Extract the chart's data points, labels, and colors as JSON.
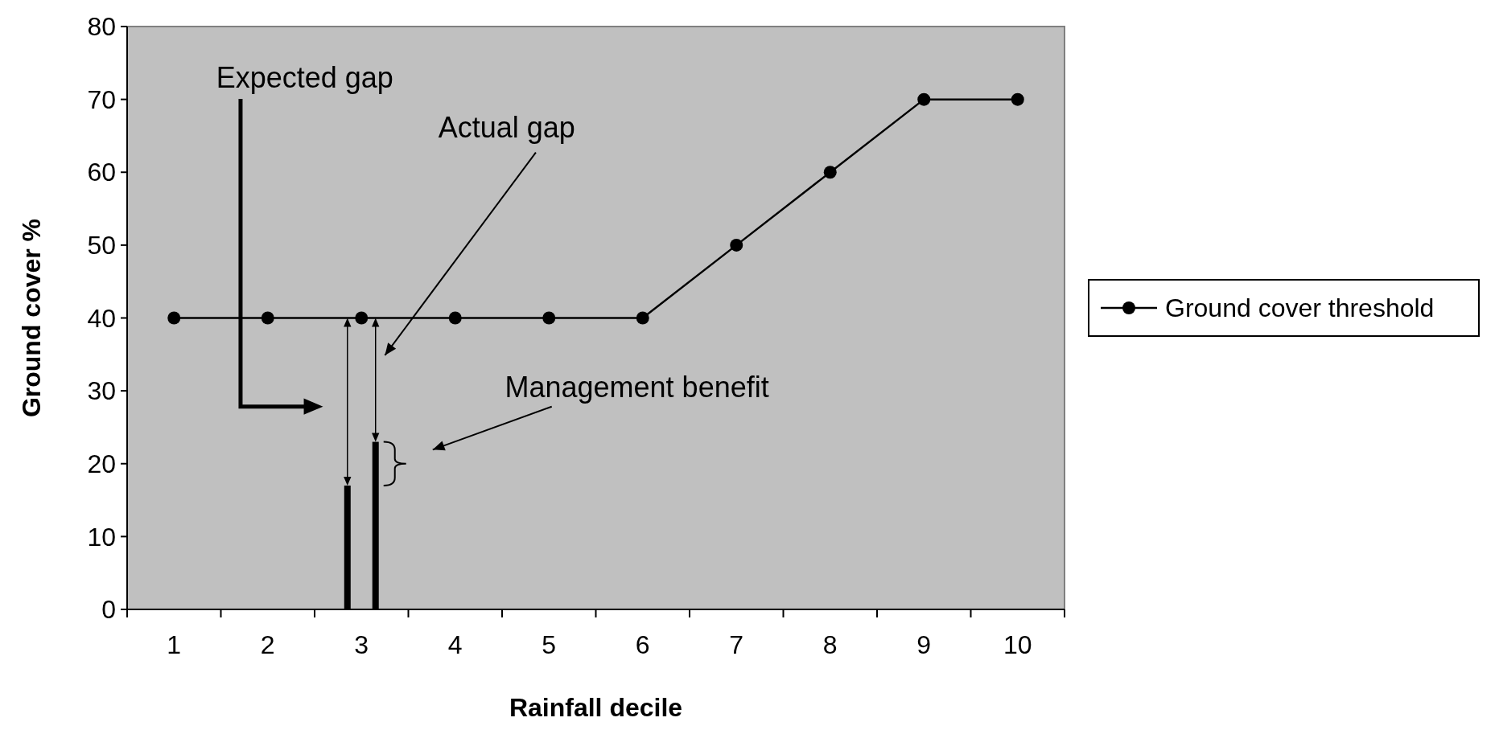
{
  "chart_data": {
    "type": "line",
    "xlabel": "Rainfall decile",
    "ylabel": "Ground cover %",
    "categories": [
      "1",
      "2",
      "3",
      "4",
      "5",
      "6",
      "7",
      "8",
      "9",
      "10"
    ],
    "series": [
      {
        "name": "Ground cover threshold",
        "color": "#000000",
        "values": [
          40,
          40,
          40,
          40,
          40,
          40,
          50,
          60,
          70,
          70
        ]
      },
      {
        "type": "bar",
        "color": "#000000",
        "values": [
          null,
          null,
          17,
          null,
          null,
          null,
          null,
          null,
          null,
          null
        ]
      },
      {
        "type": "bar",
        "color": "#000000",
        "values": [
          null,
          null,
          23,
          null,
          null,
          null,
          null,
          null,
          null,
          null
        ]
      }
    ],
    "ylim": [
      0,
      80
    ],
    "yticks": [
      0,
      10,
      20,
      30,
      40,
      50,
      60,
      70,
      80
    ],
    "grid": false,
    "marker": "circle",
    "line_style": "solid",
    "legend": "right",
    "annotations": [
      "Expected gap",
      "Actual gap",
      "Management benefit"
    ]
  }
}
